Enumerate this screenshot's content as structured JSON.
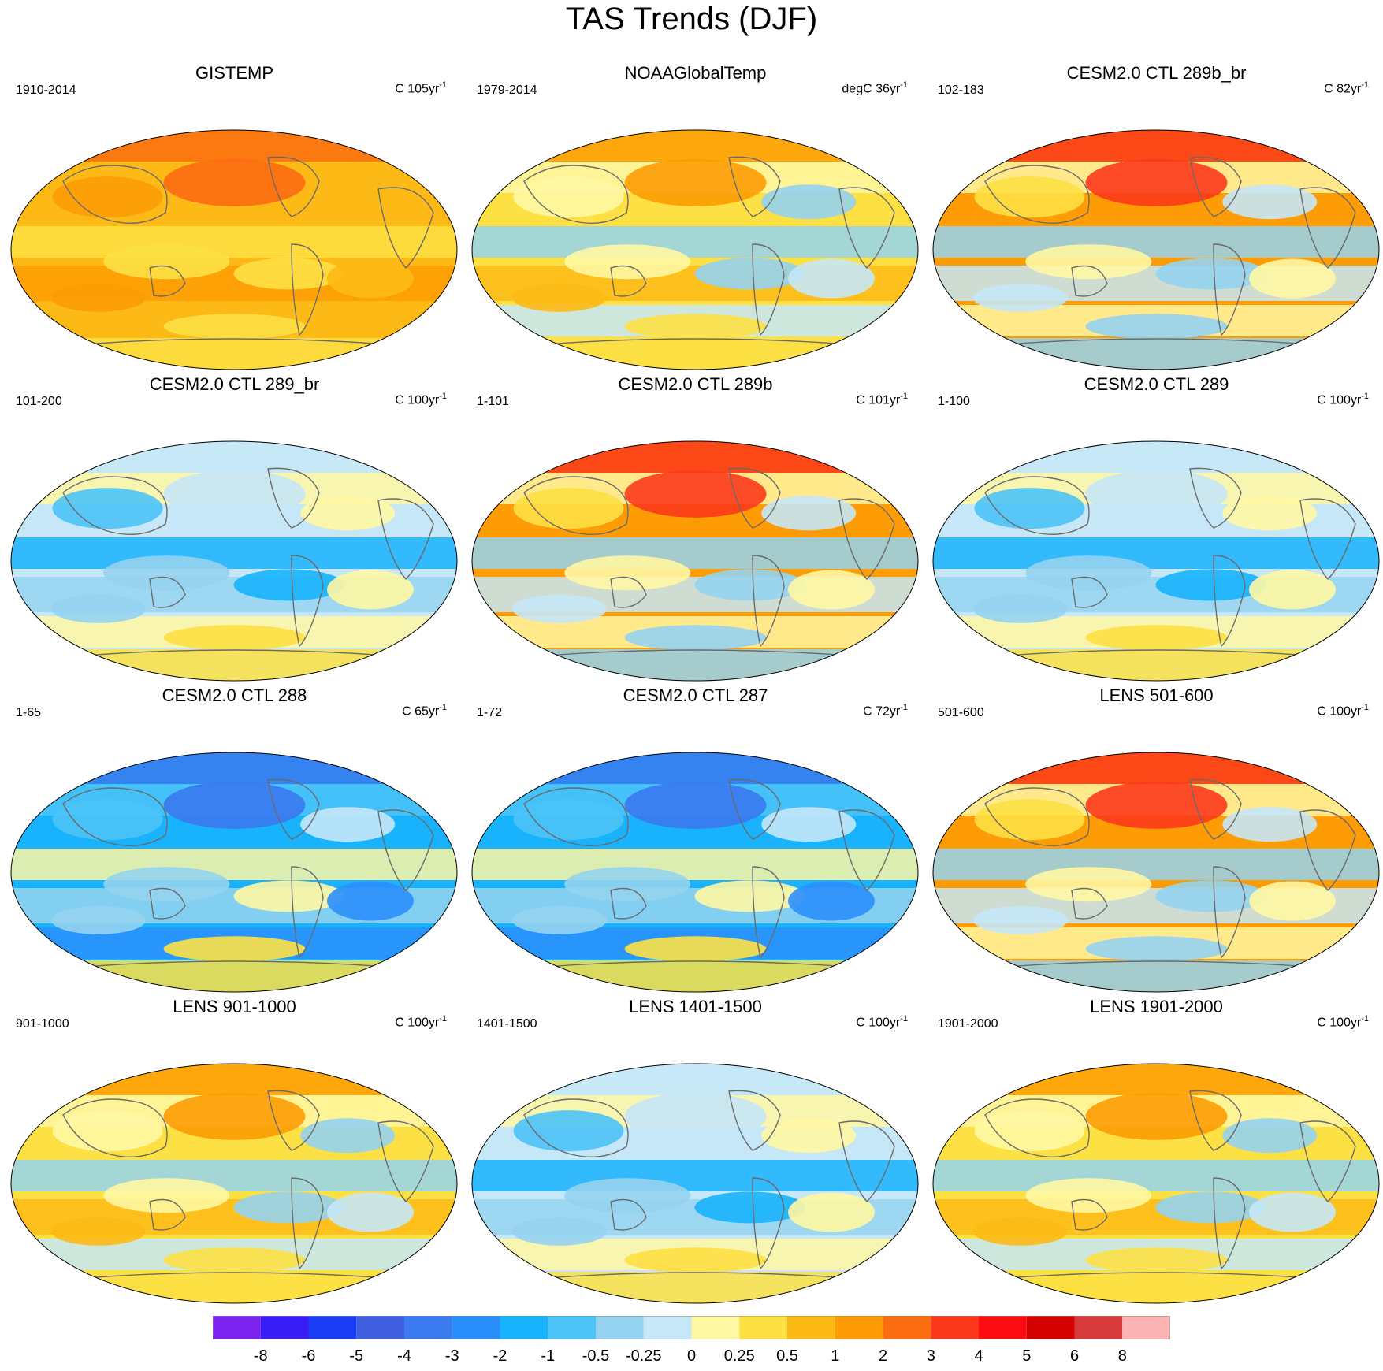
{
  "chart_data": {
    "type": "map",
    "title": "TAS Trends (DJF)",
    "panels": [
      {
        "title": "GISTEMP",
        "period": "1910-2014",
        "units": "C",
        "per": "105yr",
        "sup": "-1",
        "pattern": "warm"
      },
      {
        "title": "NOAAGlobalTemp",
        "period": "1979-2014",
        "units": "degC",
        "per": "36yr",
        "sup": "-1",
        "pattern": "mixed-warm"
      },
      {
        "title": "CESM2.0 CTL 289b_br",
        "period": "102-183",
        "units": "C",
        "per": "82yr",
        "sup": "-1",
        "pattern": "mixed-arctic-warm"
      },
      {
        "title": "CESM2.0 CTL 289_br",
        "period": "101-200",
        "units": "C",
        "per": "100yr",
        "sup": "-1",
        "pattern": "mixed-cool"
      },
      {
        "title": "CESM2.0 CTL 289b",
        "period": "1-101",
        "units": "C",
        "per": "101yr",
        "sup": "-1",
        "pattern": "mixed-arctic-warm"
      },
      {
        "title": "CESM2.0 CTL 289",
        "period": "1-100",
        "units": "C",
        "per": "100yr",
        "sup": "-1",
        "pattern": "mixed-cool"
      },
      {
        "title": "CESM2.0 CTL 288",
        "period": "1-65",
        "units": "C",
        "per": "65yr",
        "sup": "-1",
        "pattern": "cool"
      },
      {
        "title": "CESM2.0 CTL 287",
        "period": "1-72",
        "units": "C",
        "per": "72yr",
        "sup": "-1",
        "pattern": "cool"
      },
      {
        "title": "LENS 501-600",
        "period": "501-600",
        "units": "C",
        "per": "100yr",
        "sup": "-1",
        "pattern": "mixed-arctic-warm"
      },
      {
        "title": "LENS 901-1000",
        "period": "901-1000",
        "units": "C",
        "per": "100yr",
        "sup": "-1",
        "pattern": "mixed-warm"
      },
      {
        "title": "LENS 1401-1500",
        "period": "1401-1500",
        "units": "C",
        "per": "100yr",
        "sup": "-1",
        "pattern": "mixed-cool"
      },
      {
        "title": "LENS 1901-2000",
        "period": "1901-2000",
        "units": "C",
        "per": "100yr",
        "sup": "-1",
        "pattern": "mixed-warm"
      }
    ],
    "colorbar": {
      "labels": [
        "-8",
        "-6",
        "-5",
        "-4",
        "-3",
        "-2",
        "-1",
        "-0.5",
        "-0.25",
        "0",
        "0.25",
        "0.5",
        "1",
        "2",
        "3",
        "4",
        "5",
        "6",
        "8"
      ],
      "colors": [
        "#7b22ee",
        "#3a1cf5",
        "#1a3cf5",
        "#3f5fde",
        "#3b79ee",
        "#2b8ffb",
        "#18b2fd",
        "#4bc3f7",
        "#95d3f0",
        "#c5e7f7",
        "#fff7a3",
        "#fde044",
        "#fdba16",
        "#fd9c04",
        "#fc6d12",
        "#fc3a1b",
        "#fc0c11",
        "#d40101",
        "#d83b3b",
        "#fcb4b4"
      ]
    }
  }
}
